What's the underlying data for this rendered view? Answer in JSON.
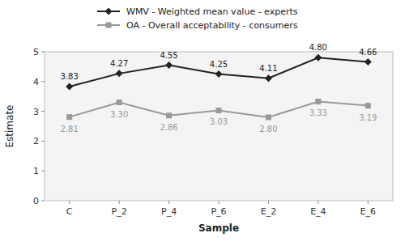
{
  "chart_data": {
    "type": "line",
    "categories": [
      "C",
      "P_2",
      "P_4",
      "P_6",
      "E_2",
      "E_4",
      "E_6"
    ],
    "series": [
      {
        "name": "WMV - Weighted mean value - experts",
        "color": "#222222",
        "marker": "diamond",
        "values": [
          3.83,
          4.27,
          4.55,
          4.25,
          4.11,
          4.8,
          4.66
        ],
        "value_labels": [
          "3.83",
          "4.27",
          "4.55",
          "4.25",
          "4.11",
          "4.80",
          "4.66"
        ]
      },
      {
        "name": "OA - Overall acceptability - consumers",
        "color": "#999999",
        "marker": "square",
        "values": [
          2.81,
          3.3,
          2.86,
          3.03,
          2.8,
          3.33,
          3.19
        ],
        "value_labels": [
          "2.81",
          "3.30",
          "2.86",
          "3.03",
          "2.80",
          "3.33",
          "3.19"
        ]
      }
    ],
    "xlabel": "Sample",
    "ylabel": "Estimate",
    "ylim": [
      0,
      5
    ],
    "yticks": [
      0,
      1,
      2,
      3,
      4,
      5
    ],
    "grid": false,
    "legend": "top",
    "data_labels": true
  }
}
